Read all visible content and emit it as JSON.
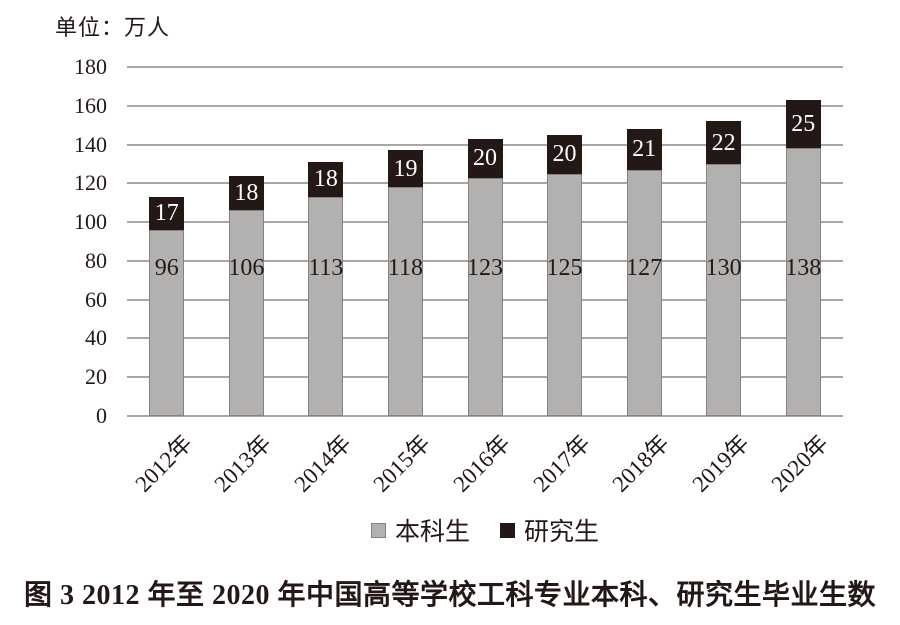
{
  "unit_label": "单位：万人",
  "caption": "图 3  2012 年至 2020 年中国高等学校工科专业本科、研究生毕业生数",
  "colors": {
    "undergrad": "#b3b1b0",
    "graduate": "#231815",
    "gridline": "#a9a6a4",
    "text": "#231815",
    "value_on_dark": "#ffffff"
  },
  "chart_data": {
    "type": "bar",
    "stacked": true,
    "title": "图 3  2012 年至 2020 年中国高等学校工科专业本科、研究生毕业生数",
    "unit": "万人",
    "categories": [
      "2012年",
      "2013年",
      "2014年",
      "2015年",
      "2016年",
      "2017年",
      "2018年",
      "2019年",
      "2020年"
    ],
    "series": [
      {
        "name": "本科生",
        "color": "#b3b1b0",
        "values": [
          96,
          106,
          113,
          118,
          123,
          125,
          127,
          130,
          138
        ]
      },
      {
        "name": "研究生",
        "color": "#231815",
        "values": [
          17,
          18,
          18,
          19,
          20,
          20,
          21,
          22,
          25
        ]
      }
    ],
    "ylim": [
      0,
      180
    ],
    "ytick_step": 20,
    "yticks": [
      0,
      20,
      40,
      60,
      80,
      100,
      120,
      140,
      160,
      180
    ],
    "grid": true,
    "legend_position": "bottom"
  }
}
